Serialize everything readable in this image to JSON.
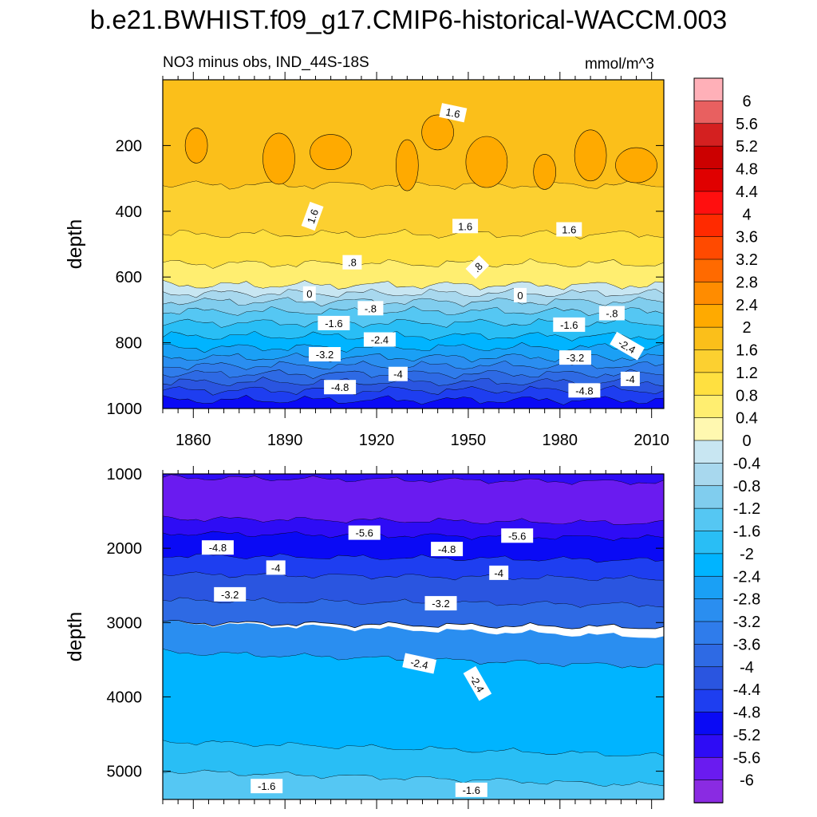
{
  "chart_data": {
    "type": "contour",
    "title": "b.e21.BWHIST.f09_g17.CMIP6-historical-WACCM.003",
    "subtitle_left": "NO3 minus obs, IND_44S-18S",
    "units": "mmol/m^3",
    "x_tick_labels": [
      "1860",
      "1890",
      "1920",
      "1950",
      "1980",
      "2010"
    ],
    "x_ticks": [
      1860,
      1890,
      1920,
      1950,
      1980,
      2010
    ],
    "xlim": [
      1850,
      2014
    ],
    "colorbar": {
      "levels": [
        -6,
        -5.6,
        -5.2,
        -4.8,
        -4.4,
        -4,
        -3.6,
        -3.2,
        -2.8,
        -2.4,
        -2,
        -1.6,
        -1.2,
        -0.8,
        -0.4,
        0,
        0.4,
        0.8,
        1.2,
        1.6,
        2,
        2.4,
        2.8,
        3.2,
        3.6,
        4,
        4.4,
        4.8,
        5.2,
        5.6,
        6
      ],
      "level_labels": [
        "-6",
        "-5.6",
        "-5.2",
        "-4.8",
        "-4.4",
        "-4",
        "-3.6",
        "-3.2",
        "-2.8",
        "-2.4",
        "-2",
        "-1.6",
        "-1.2",
        "-0.8",
        "-0.4",
        "0",
        "0.4",
        "0.8",
        "1.2",
        "1.6",
        "2",
        "2.4",
        "2.8",
        "3.2",
        "3.6",
        "4",
        "4.4",
        "4.8",
        "5.2",
        "5.6",
        "6"
      ],
      "colors": [
        "#8a2be2",
        "#6a1bf0",
        "#2e0cf5",
        "#0a0af5",
        "#1e3ef0",
        "#2a55e0",
        "#2e6ae4",
        "#2f7ceb",
        "#2a8ef0",
        "#1aa0f5",
        "#00b4ff",
        "#29bef5",
        "#55c7f3",
        "#80cdee",
        "#a8d8ee",
        "#c8e6f2",
        "#fff8b0",
        "#ffee70",
        "#ffe040",
        "#fcd030",
        "#fbbf1a",
        "#ffaa00",
        "#ff8c00",
        "#ff6a00",
        "#ff4a00",
        "#ff2a00",
        "#ff0f0f",
        "#e00000",
        "#cc0000",
        "#d42020",
        "#e86060",
        "#ffb0b8"
      ]
    },
    "panels": [
      {
        "name": "upper",
        "ylabel": "depth",
        "ylim": [
          0,
          1000
        ],
        "y_ticks": [
          200,
          400,
          600,
          800,
          1000
        ],
        "y_tick_labels": [
          "200",
          "400",
          "600",
          "800",
          "1000"
        ],
        "bands": [
          {
            "top": 0,
            "bottom": 320,
            "value": 1.6
          },
          {
            "top": 320,
            "bottom": 470,
            "value": 1.2
          },
          {
            "top": 470,
            "bottom": 560,
            "value": 0.8
          },
          {
            "top": 560,
            "bottom": 625,
            "value": 0.4
          },
          {
            "top": 625,
            "bottom": 650,
            "value": -0.4
          },
          {
            "top": 650,
            "bottom": 675,
            "value": -0.8
          },
          {
            "top": 675,
            "bottom": 705,
            "value": -1.2
          },
          {
            "top": 705,
            "bottom": 740,
            "value": -1.6
          },
          {
            "top": 740,
            "bottom": 780,
            "value": -2.0
          },
          {
            "top": 780,
            "bottom": 815,
            "value": -2.4
          },
          {
            "top": 815,
            "bottom": 845,
            "value": -2.8
          },
          {
            "top": 845,
            "bottom": 870,
            "value": -3.2
          },
          {
            "top": 870,
            "bottom": 895,
            "value": -3.6
          },
          {
            "top": 895,
            "bottom": 920,
            "value": -4.0
          },
          {
            "top": 920,
            "bottom": 945,
            "value": -4.4
          },
          {
            "top": 945,
            "bottom": 975,
            "value": -4.8
          },
          {
            "top": 975,
            "bottom": 1000,
            "value": -5.2
          }
        ],
        "contour_labels": [
          {
            "text": "1.6",
            "year": 1945,
            "depth": 100,
            "angle": 12
          },
          {
            "text": "1.6",
            "year": 1899,
            "depth": 415,
            "angle": -70
          },
          {
            "text": "1.6",
            "year": 1949,
            "depth": 445,
            "angle": 0
          },
          {
            "text": "1.6",
            "year": 1983,
            "depth": 455,
            "angle": 0
          },
          {
            "text": ".8",
            "year": 1912,
            "depth": 555,
            "angle": 0
          },
          {
            "text": ".8",
            "year": 1953,
            "depth": 570,
            "angle": -45
          },
          {
            "text": "0",
            "year": 1898,
            "depth": 650,
            "angle": 0
          },
          {
            "text": "0",
            "year": 1967,
            "depth": 655,
            "angle": 0
          },
          {
            "text": "-.8",
            "year": 1918,
            "depth": 695,
            "angle": 0
          },
          {
            "text": "-.8",
            "year": 1997,
            "depth": 710,
            "angle": 0
          },
          {
            "text": "-1.6",
            "year": 1906,
            "depth": 740,
            "angle": 0
          },
          {
            "text": "-1.6",
            "year": 1983,
            "depth": 745,
            "angle": 0
          },
          {
            "text": "-2.4",
            "year": 1921,
            "depth": 790,
            "angle": 0
          },
          {
            "text": "-2.4",
            "year": 2002,
            "depth": 810,
            "angle": 30
          },
          {
            "text": "-3.2",
            "year": 1903,
            "depth": 835,
            "angle": 0
          },
          {
            "text": "-3.2",
            "year": 1985,
            "depth": 845,
            "angle": 0
          },
          {
            "text": "-4",
            "year": 1927,
            "depth": 895,
            "angle": 0
          },
          {
            "text": "-4",
            "year": 2003,
            "depth": 910,
            "angle": 0
          },
          {
            "text": "-4.8",
            "year": 1908,
            "depth": 935,
            "angle": 0
          },
          {
            "text": "-4.8",
            "year": 1988,
            "depth": 945,
            "angle": 0
          }
        ]
      },
      {
        "name": "lower",
        "ylabel": "depth",
        "ylim": [
          1000,
          5380
        ],
        "y_ticks": [
          1000,
          2000,
          3000,
          4000,
          5000
        ],
        "y_tick_labels": [
          "1000",
          "2000",
          "3000",
          "4000",
          "5000"
        ],
        "bands": [
          {
            "top": 1000,
            "bottom": 1050,
            "value": -5.4
          },
          {
            "top": 1050,
            "bottom": 1600,
            "value": -6.0
          },
          {
            "top": 1600,
            "bottom": 1800,
            "value": -5.6
          },
          {
            "top": 1800,
            "bottom": 2100,
            "value": -5.0
          },
          {
            "top": 2100,
            "bottom": 2350,
            "value": -4.6
          },
          {
            "top": 2350,
            "bottom": 2700,
            "value": -4.2
          },
          {
            "top": 2700,
            "bottom": 3000,
            "value": -3.8
          },
          {
            "top": 3000,
            "bottom": 3400,
            "value": -3.0
          },
          {
            "top": 3400,
            "bottom": 4600,
            "value": -2.2
          },
          {
            "top": 4600,
            "bottom": 5000,
            "value": -1.8
          },
          {
            "top": 5000,
            "bottom": 5380,
            "value": -1.4
          }
        ],
        "contour_labels": [
          {
            "text": "-5.6",
            "year": 1916,
            "depth": 1790,
            "angle": 0
          },
          {
            "text": "-5.6",
            "year": 1966,
            "depth": 1830,
            "angle": 0
          },
          {
            "text": "-4.8",
            "year": 1868,
            "depth": 1990,
            "angle": 0
          },
          {
            "text": "-4.8",
            "year": 1943,
            "depth": 2010,
            "angle": 0
          },
          {
            "text": "-4",
            "year": 1887,
            "depth": 2260,
            "angle": 0
          },
          {
            "text": "-4",
            "year": 1960,
            "depth": 2330,
            "angle": 0
          },
          {
            "text": "-3.2",
            "year": 1872,
            "depth": 2620,
            "angle": 0
          },
          {
            "text": "-3.2",
            "year": 1941,
            "depth": 2740,
            "angle": 0
          },
          {
            "text": "-2.4",
            "year": 1934,
            "depth": 3550,
            "angle": 12
          },
          {
            "text": "-2.4",
            "year": 1953,
            "depth": 3820,
            "angle": 60
          },
          {
            "text": "-1.6",
            "year": 1884,
            "depth": 5200,
            "angle": 0
          },
          {
            "text": "-1.6",
            "year": 1951,
            "depth": 5250,
            "angle": 0
          }
        ]
      }
    ]
  }
}
